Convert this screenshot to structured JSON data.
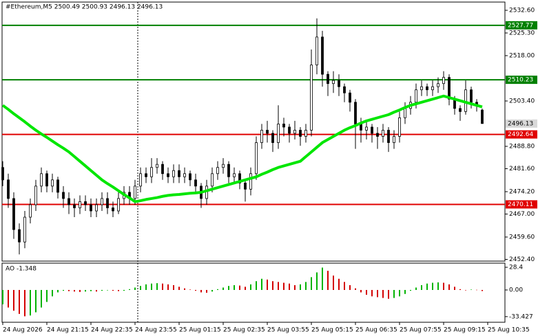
{
  "chart_data": {
    "type": "candlestick",
    "title": "#Ethereum,M5  2500.49 2500.93 2496.13 2496.13",
    "ylim": [
      2451.85,
      2535.03
    ],
    "yticks": [
      {
        "value": 2532.6,
        "label": "2532.60"
      },
      {
        "value": 2525.3,
        "label": "2525.30"
      },
      {
        "value": 2518,
        "label": "2518.00"
      },
      {
        "value": 2503.4,
        "label": "2503.40"
      },
      {
        "value": 2488.8,
        "label": "2488.80"
      },
      {
        "value": 2481.6,
        "label": "2481.60"
      },
      {
        "value": 2474.2,
        "label": "2474.20"
      },
      {
        "value": 2467,
        "label": "2467.00"
      },
      {
        "value": 2459.6,
        "label": "2459.60"
      },
      {
        "value": 2452.4,
        "label": "2452.40"
      }
    ],
    "xticks": [
      {
        "value": 0,
        "label": "24 Aug 2026"
      },
      {
        "value": 8,
        "label": "24 Aug 21:15"
      },
      {
        "value": 16,
        "label": "24 Aug 22:35"
      },
      {
        "value": 24,
        "label": "24 Aug 23:55"
      },
      {
        "value": 32,
        "label": "25 Aug 01:15"
      },
      {
        "value": 40,
        "label": "25 Aug 02:35"
      },
      {
        "value": 48,
        "label": "25 Aug 03:55"
      },
      {
        "value": 56,
        "label": "25 Aug 05:15"
      },
      {
        "value": 64,
        "label": "25 Aug 06:35"
      },
      {
        "value": 72,
        "label": "25 Aug 07:55"
      },
      {
        "value": 80,
        "label": "25 Aug 09:15"
      },
      {
        "value": 88,
        "label": "25 Aug 10:35"
      }
    ],
    "up_color": "#ffffff",
    "down_color": "#000000",
    "ohlc": [
      [
        2482,
        2484,
        2476,
        2478
      ],
      [
        2478,
        2480,
        2469,
        2472
      ],
      [
        2472,
        2474,
        2459,
        2462
      ],
      [
        2462,
        2464,
        2454,
        2458
      ],
      [
        2458,
        2468,
        2456,
        2466
      ],
      [
        2466,
        2472,
        2464,
        2470
      ],
      [
        2470,
        2478,
        2468,
        2476
      ],
      [
        2476,
        2482,
        2474,
        2480
      ],
      [
        2480,
        2481,
        2474,
        2476
      ],
      [
        2476,
        2480,
        2474,
        2478
      ],
      [
        2478,
        2479,
        2472,
        2474
      ],
      [
        2474,
        2476,
        2469,
        2472
      ],
      [
        2472,
        2474,
        2467,
        2470
      ],
      [
        2470,
        2472,
        2466,
        2469
      ],
      [
        2469,
        2473,
        2467,
        2471
      ],
      [
        2471,
        2473,
        2468,
        2470
      ],
      [
        2470,
        2472,
        2466,
        2468
      ],
      [
        2468,
        2472,
        2466,
        2470
      ],
      [
        2470,
        2474,
        2468,
        2472
      ],
      [
        2472,
        2474,
        2467,
        2469
      ],
      [
        2469,
        2471,
        2466,
        2468
      ],
      [
        2468,
        2474,
        2467,
        2472
      ],
      [
        2472,
        2476,
        2470,
        2474
      ],
      [
        2474,
        2476,
        2470,
        2472
      ],
      [
        2472,
        2478,
        2470,
        2476
      ],
      [
        2476,
        2482,
        2474,
        2480
      ],
      [
        2480,
        2482,
        2477,
        2479
      ],
      [
        2479,
        2485,
        2477,
        2482
      ],
      [
        2482,
        2485,
        2480,
        2483
      ],
      [
        2483,
        2484,
        2478,
        2480
      ],
      [
        2480,
        2482,
        2477,
        2479
      ],
      [
        2479,
        2483,
        2477,
        2481
      ],
      [
        2481,
        2483,
        2477,
        2479
      ],
      [
        2479,
        2482,
        2477,
        2480
      ],
      [
        2480,
        2481,
        2476,
        2478
      ],
      [
        2478,
        2480,
        2474,
        2476
      ],
      [
        2476,
        2477,
        2469,
        2472
      ],
      [
        2472,
        2478,
        2470,
        2476
      ],
      [
        2476,
        2482,
        2474,
        2480
      ],
      [
        2480,
        2484,
        2478,
        2482
      ],
      [
        2482,
        2485,
        2480,
        2483
      ],
      [
        2483,
        2484,
        2477,
        2479
      ],
      [
        2479,
        2482,
        2477,
        2480
      ],
      [
        2480,
        2481,
        2475,
        2477
      ],
      [
        2477,
        2478,
        2471,
        2475
      ],
      [
        2475,
        2482,
        2473,
        2480
      ],
      [
        2480,
        2492,
        2478,
        2490
      ],
      [
        2490,
        2496,
        2488,
        2494
      ],
      [
        2494,
        2497,
        2490,
        2493
      ],
      [
        2493,
        2494,
        2487,
        2490
      ],
      [
        2490,
        2502,
        2488,
        2496
      ],
      [
        2496,
        2498,
        2492,
        2495
      ],
      [
        2495,
        2496,
        2490,
        2493
      ],
      [
        2493,
        2497,
        2491,
        2494
      ],
      [
        2494,
        2495,
        2489,
        2492
      ],
      [
        2492,
        2496,
        2490,
        2494
      ],
      [
        2494,
        2520,
        2492,
        2515
      ],
      [
        2515,
        2530,
        2512,
        2524
      ],
      [
        2524,
        2526,
        2508,
        2512
      ],
      [
        2512,
        2513,
        2505,
        2509
      ],
      [
        2509,
        2513,
        2506,
        2510
      ],
      [
        2510,
        2512,
        2505,
        2508
      ],
      [
        2508,
        2509,
        2503,
        2506
      ],
      [
        2506,
        2507,
        2500,
        2503
      ],
      [
        2503,
        2504,
        2488,
        2496
      ],
      [
        2496,
        2498,
        2490,
        2494
      ],
      [
        2494,
        2497,
        2491,
        2495
      ],
      [
        2495,
        2496,
        2490,
        2493
      ],
      [
        2493,
        2495,
        2488,
        2492
      ],
      [
        2492,
        2496,
        2490,
        2494
      ],
      [
        2494,
        2495,
        2487,
        2490
      ],
      [
        2490,
        2494,
        2488,
        2492
      ],
      [
        2492,
        2500,
        2490,
        2498
      ],
      [
        2498,
        2503,
        2496,
        2501
      ],
      [
        2501,
        2505,
        2499,
        2503
      ],
      [
        2503,
        2509,
        2501,
        2507
      ],
      [
        2507,
        2510,
        2505,
        2508
      ],
      [
        2508,
        2509,
        2505,
        2507
      ],
      [
        2507,
        2510,
        2505,
        2508
      ],
      [
        2508,
        2511,
        2506,
        2509
      ],
      [
        2509,
        2513,
        2507,
        2511
      ],
      [
        2511,
        2512,
        2502,
        2504
      ],
      [
        2504,
        2505,
        2499,
        2501
      ],
      [
        2501,
        2502,
        2497,
        2500
      ],
      [
        2500,
        2510,
        2499,
        2507
      ],
      [
        2507,
        2508,
        2501,
        2503
      ],
      [
        2503,
        2504,
        2500,
        2502
      ],
      [
        2500.49,
        2500.93,
        2496.13,
        2496.13
      ]
    ],
    "ma": {
      "color": "#00e600",
      "values": [
        2502,
        2500.7,
        2499.3,
        2498,
        2496.7,
        2495.3,
        2494,
        2492.8,
        2491.7,
        2490.5,
        2489.3,
        2488.2,
        2487,
        2485.5,
        2484,
        2482.5,
        2481,
        2479.5,
        2478,
        2476.8,
        2475.7,
        2474.5,
        2473.3,
        2472.2,
        2471,
        2471.3,
        2471.7,
        2472,
        2472.3,
        2472.7,
        2473,
        2473.2,
        2473.3,
        2473.5,
        2473.7,
        2473.8,
        2474,
        2474.5,
        2475,
        2475.5,
        2476,
        2476.5,
        2477,
        2477.5,
        2478,
        2478.5,
        2479,
        2479.8,
        2480.5,
        2481.3,
        2482,
        2482.5,
        2483,
        2483.5,
        2484,
        2485.5,
        2487,
        2488.5,
        2490,
        2491,
        2492,
        2493,
        2494,
        2494.8,
        2495.5,
        2496.3,
        2497,
        2497.5,
        2498,
        2498.5,
        2499,
        2499.8,
        2500.5,
        2501.3,
        2502,
        2502.5,
        2503,
        2503.5,
        2504,
        2504.5,
        2505,
        2504.5,
        2504,
        2503.5,
        2503,
        2502.5,
        2502,
        2501.5
      ]
    },
    "levels": [
      {
        "value": 2527.77,
        "color": "#008000"
      },
      {
        "value": 2510.23,
        "color": "#008000"
      },
      {
        "value": 2492.64,
        "color": "#e00000"
      },
      {
        "value": 2470.11,
        "color": "#e00000"
      }
    ],
    "last": 2496.13,
    "indicator": {
      "label": "AO -1.348",
      "ylim": [
        -39.6,
        32.7
      ],
      "yticks": [
        28.4,
        {
          "value": 0,
          "label": "0.00"
        },
        -33.427
      ],
      "up_color": "#00b300",
      "down_color": "#d40000",
      "values": [
        -18,
        -22,
        -26,
        -30,
        -33,
        -32,
        -28,
        -22,
        -15,
        -8,
        -3,
        -1,
        -1.5,
        -2,
        -2.5,
        -2,
        -1.5,
        -2,
        -1,
        -0.5,
        -1,
        -1.5,
        -1,
        1,
        3,
        5,
        7,
        8,
        8.5,
        8,
        7,
        6,
        4,
        2,
        0.5,
        -1,
        -3,
        -3.5,
        -2,
        1,
        3,
        5,
        6,
        5.5,
        4,
        7,
        11,
        14,
        13,
        11,
        10,
        9,
        8,
        6,
        7,
        10,
        16,
        22,
        28,
        24,
        18,
        14,
        10,
        6,
        2,
        -3,
        -6,
        -8,
        -9,
        -10,
        -11,
        -10,
        -8,
        -5,
        -1,
        3,
        6,
        8,
        9,
        9.5,
        9,
        7,
        4,
        1,
        -0.5,
        0.5,
        0.2,
        -1.348
      ]
    }
  }
}
